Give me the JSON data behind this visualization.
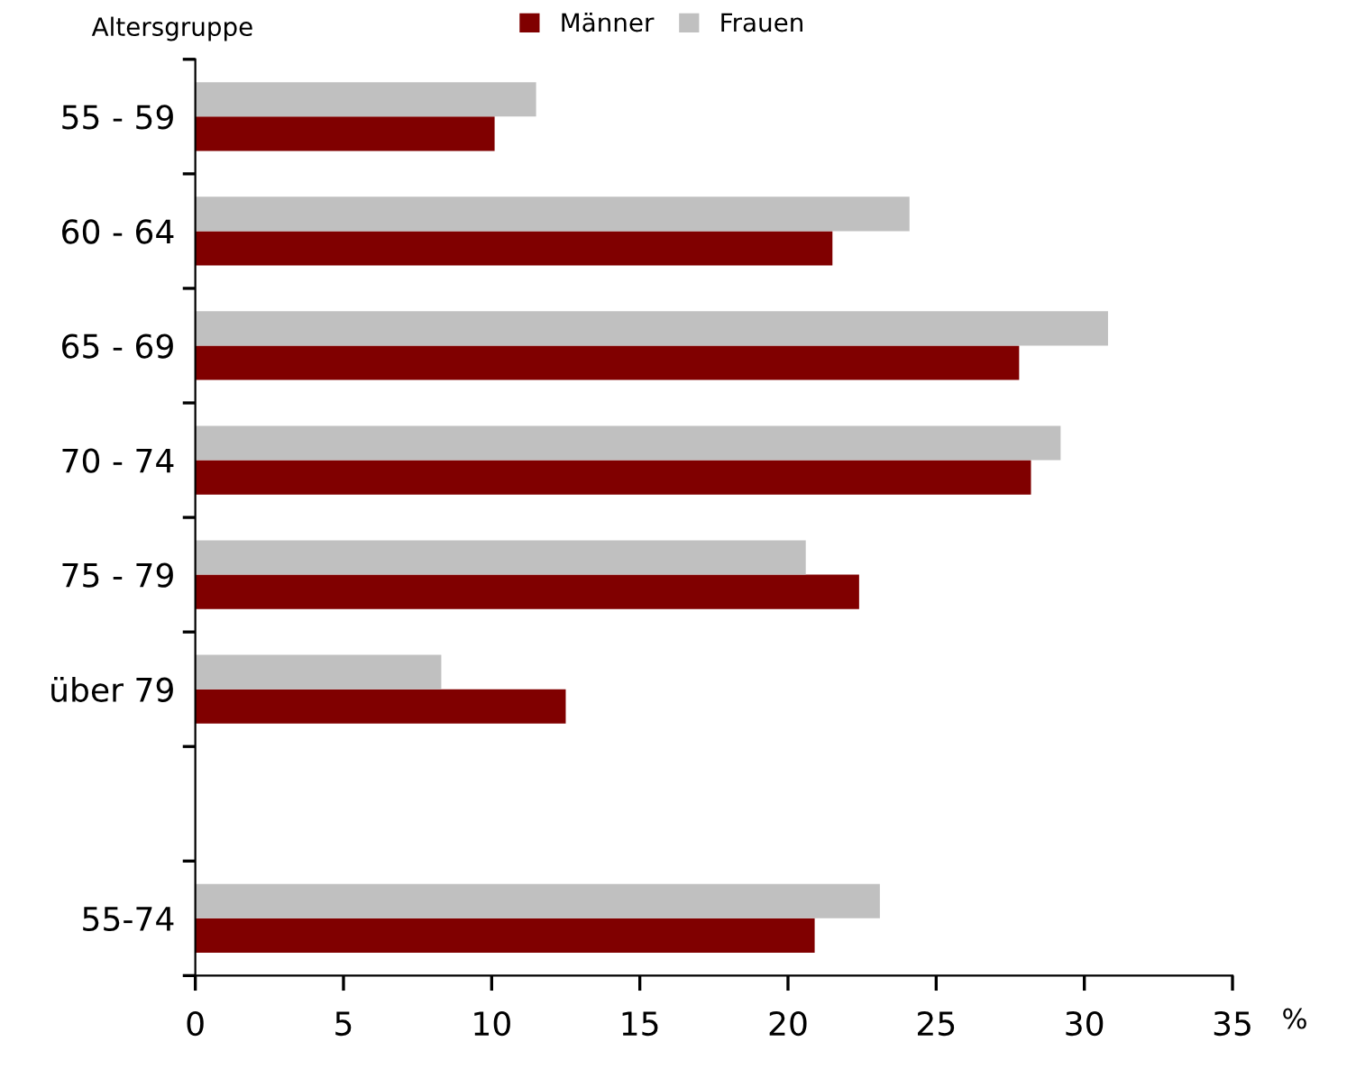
{
  "chart_data": {
    "type": "bar",
    "orientation": "horizontal",
    "ylabel": "Altersgruppe",
    "xlabel": "%",
    "categories": [
      "55 - 59",
      "60 - 64",
      "65 - 69",
      "70 - 74",
      "75 - 79",
      "über 79",
      null,
      "55-74"
    ],
    "series": [
      {
        "name": "Männer",
        "color": "#800000",
        "values": [
          10.1,
          21.5,
          27.8,
          28.2,
          22.4,
          12.5,
          null,
          20.9
        ]
      },
      {
        "name": "Frauen",
        "color": "#c0c0c0",
        "values": [
          11.5,
          24.1,
          30.8,
          29.2,
          20.6,
          8.3,
          null,
          23.1
        ]
      }
    ],
    "xlim": [
      0,
      35
    ],
    "xticks": [
      0,
      5,
      10,
      15,
      20,
      25,
      30,
      35
    ],
    "grid": false,
    "legend": "top"
  }
}
